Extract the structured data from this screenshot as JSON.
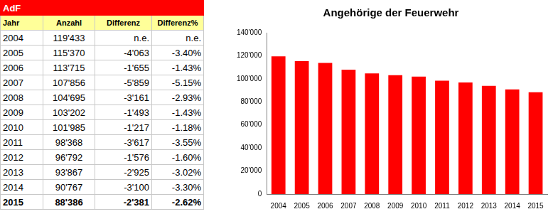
{
  "table": {
    "title": "AdF",
    "columns": [
      "Jahr",
      "Anzahl",
      "Differenz",
      "Differenz%"
    ],
    "rows": [
      [
        "2004",
        "119'433",
        "n.e.",
        "n.e."
      ],
      [
        "2005",
        "115'370",
        "-4'063",
        "-3.40%"
      ],
      [
        "2006",
        "113'715",
        "-1'655",
        "-1.43%"
      ],
      [
        "2007",
        "107'856",
        "-5'859",
        "-5.15%"
      ],
      [
        "2008",
        "104'695",
        "-3'161",
        "-2.93%"
      ],
      [
        "2009",
        "103'202",
        "-1'493",
        "-1.43%"
      ],
      [
        "2010",
        "101'985",
        "-1'217",
        "-1.18%"
      ],
      [
        "2011",
        "98'368",
        "-3'617",
        "-3.55%"
      ],
      [
        "2012",
        "96'792",
        "-1'576",
        "-1.60%"
      ],
      [
        "2013",
        "93'867",
        "-2'925",
        "-3.02%"
      ],
      [
        "2014",
        "90'767",
        "-3'100",
        "-3.30%"
      ],
      [
        "2015",
        "88'386",
        "-2'381",
        "-2.62%"
      ]
    ]
  },
  "chart_data": {
    "type": "bar",
    "title": "Angehörige der Feuerwehr",
    "categories": [
      "2004",
      "2005",
      "2006",
      "2007",
      "2008",
      "2009",
      "2010",
      "2011",
      "2012",
      "2013",
      "2014",
      "2015"
    ],
    "values": [
      119433,
      115370,
      113715,
      107856,
      104695,
      103202,
      101985,
      98368,
      96792,
      93867,
      90767,
      88386
    ],
    "color": "#ff0000",
    "ylim": [
      0,
      140000
    ],
    "yticks": [
      0,
      {
        "value": 20000,
        "label": "20'000"
      },
      {
        "value": 40000,
        "label": "40'000"
      },
      {
        "value": 60000,
        "label": "60'000"
      },
      {
        "value": 80000,
        "label": "80'000"
      },
      {
        "value": 100000,
        "label": "100'000"
      },
      {
        "value": 120000,
        "label": "120'000"
      },
      {
        "value": 140000,
        "label": "140'000"
      }
    ],
    "grid": false
  }
}
